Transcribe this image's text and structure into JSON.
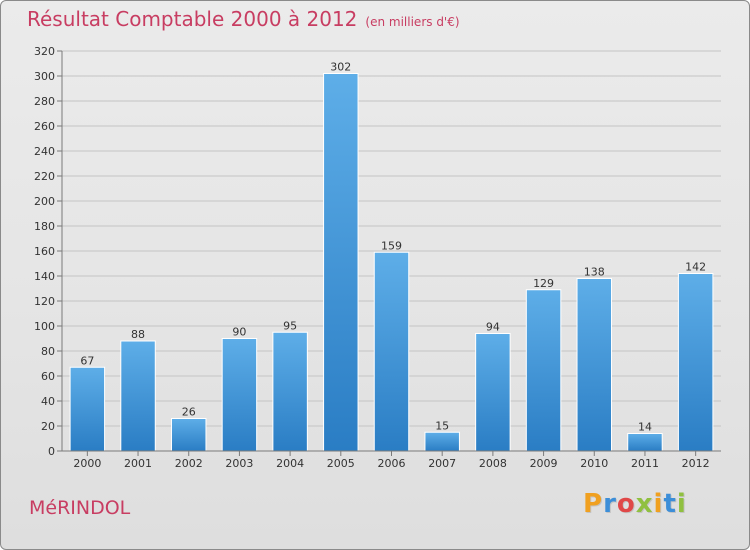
{
  "title": "Résultat Comptable 2000 à 2012",
  "subtitle": "(en milliers d'€)",
  "place": "MéRINDOL",
  "logo": {
    "letters": [
      "P",
      "r",
      "o",
      "x",
      "i",
      "t",
      "i"
    ],
    "colors": [
      "#f0a020",
      "#3c8ed8",
      "#e04848",
      "#90c040",
      "#f0a020",
      "#3c8ed8",
      "#90c040"
    ]
  },
  "colors": {
    "bar_top": "#5eaee8",
    "bar_bottom": "#2a7dc4",
    "grid": "#c4c4c4",
    "axis": "#7a7a7a",
    "accent": "#c83d62"
  },
  "chart_data": {
    "type": "bar",
    "title": "Résultat Comptable 2000 à 2012",
    "subtitle": "(en milliers d'€)",
    "xlabel": "",
    "ylabel": "",
    "categories": [
      "2000",
      "2001",
      "2002",
      "2003",
      "2004",
      "2005",
      "2006",
      "2007",
      "2008",
      "2009",
      "2010",
      "2011",
      "2012"
    ],
    "values": [
      67,
      88,
      26,
      90,
      95,
      302,
      159,
      15,
      94,
      129,
      138,
      14,
      142
    ],
    "ylim": [
      0,
      320
    ],
    "ytick_step": 20,
    "grid": true,
    "legend": "none"
  }
}
